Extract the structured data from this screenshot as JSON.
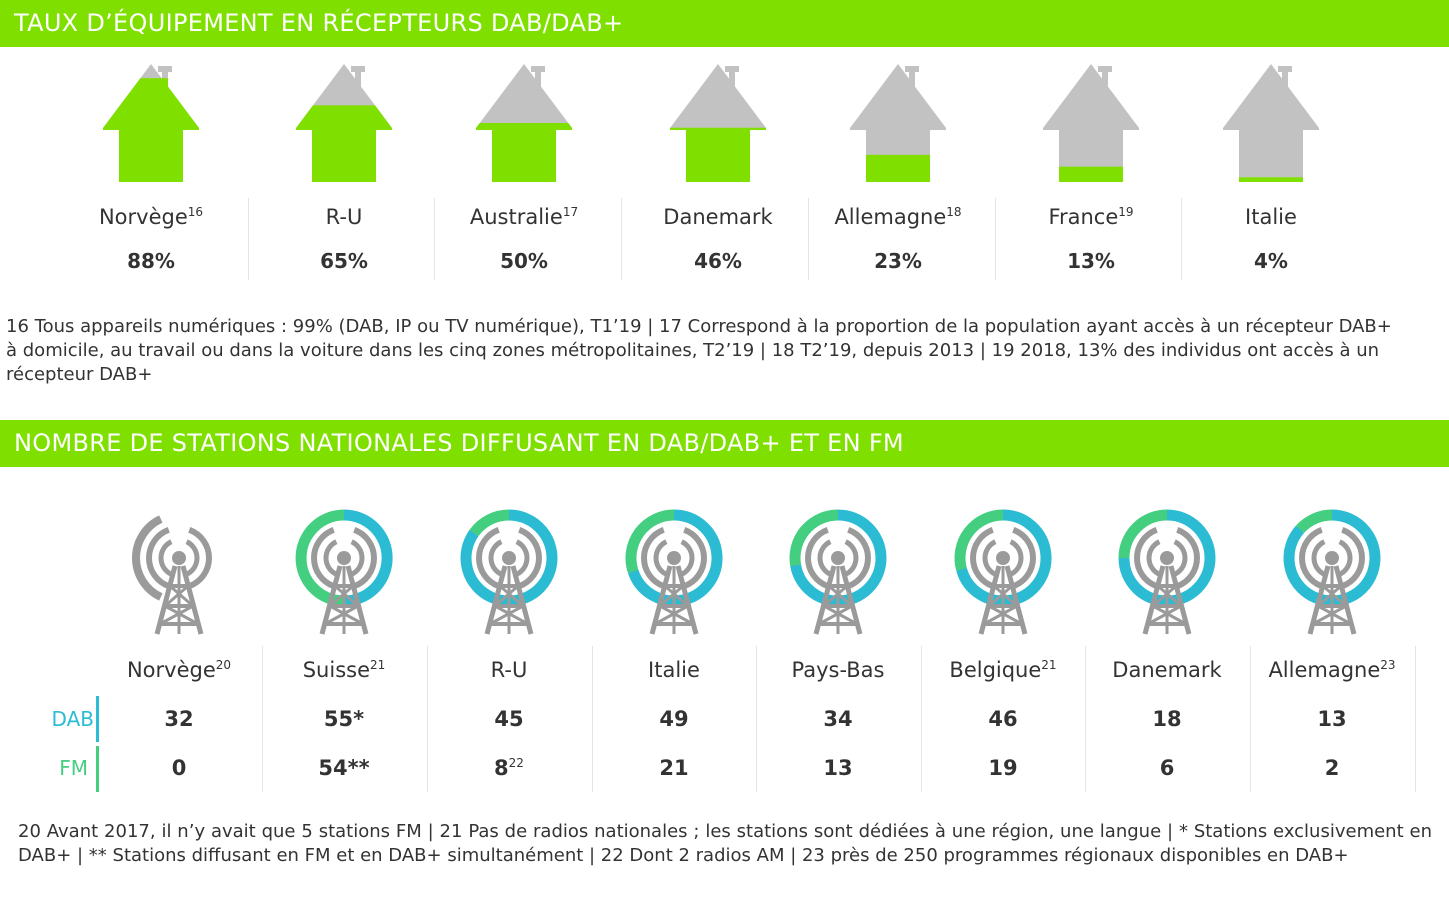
{
  "section1": {
    "title": "TAUX D’ÉQUIPEMENT EN RÉCEPTEURS DAB/DAB+",
    "footnote": "16 Tous appareils numériques : 99% (DAB, IP ou TV numérique), T1’19 | 17 Correspond à la proportion de la population ayant accès à un récepteur DAB+ à domicile, au travail ou dans la voiture dans les cinq zones métropolitaines, T2’19 | 18 T2’19, depuis 2013 | 19 2018, 13% des individus ont accès à un récepteur DAB+"
  },
  "section2": {
    "title": "NOMBRE DE STATIONS NATIONALES DIFFUSANT EN DAB/DAB+ ET EN FM",
    "dab_label": "DAB",
    "fm_label": "FM",
    "footnote": "20 Avant 2017, il n’y avait que 5 stations FM | 21 Pas de radios nationales ; les stations sont dédiées à une région, une langue | * Stations exclusivement en DAB+ | ** Stations diffusant en FM et en DAB+ simultanément | 22 Dont 2 radios AM | 23 près de 250 programmes régionaux disponibles en DAB+"
  },
  "colors": {
    "banner": "#7fe000",
    "house_fill": "#7fe000",
    "house_empty": "#c2c2c2",
    "dab": "#2bbcd4",
    "fm": "#44cf80",
    "tower": "#9a9a9a"
  },
  "icons": {
    "house": "house-icon",
    "tower": "radio-tower-icon"
  },
  "chart_data": [
    {
      "type": "bar",
      "title": "TAUX D’ÉQUIPEMENT EN RÉCEPTEURS DAB/DAB+",
      "categories": [
        "Norvège",
        "R-U",
        "Australie",
        "Danemark",
        "Allemagne",
        "France",
        "Italie"
      ],
      "superscripts": [
        "16",
        "",
        "17",
        "",
        "18",
        "19",
        ""
      ],
      "values": [
        88,
        65,
        50,
        46,
        23,
        13,
        4
      ],
      "labels": [
        "88%",
        "65%",
        "50%",
        "46%",
        "23%",
        "13%",
        "4%"
      ],
      "unit": "%",
      "ylim": [
        0,
        100
      ]
    },
    {
      "type": "table",
      "title": "NOMBRE DE STATIONS NATIONALES DIFFUSANT EN DAB/DAB+ ET EN FM",
      "categories": [
        "Norvège",
        "Suisse",
        "R-U",
        "Italie",
        "Pays-Bas",
        "Belgique",
        "Danemark",
        "Allemagne"
      ],
      "superscripts": [
        "20",
        "21",
        "",
        "",
        "",
        "21",
        "",
        "23"
      ],
      "series": [
        {
          "name": "DAB",
          "values": [
            32,
            55,
            45,
            49,
            34,
            46,
            18,
            13
          ],
          "labels": [
            "32",
            "55*",
            "45",
            "49",
            "34",
            "46",
            "18",
            "13"
          ],
          "label_sups": [
            "",
            "",
            "",
            "",
            "",
            "",
            "",
            ""
          ]
        },
        {
          "name": "FM",
          "values": [
            0,
            54,
            8,
            21,
            13,
            19,
            6,
            2
          ],
          "labels": [
            "0",
            "54**",
            "8",
            "21",
            "13",
            "19",
            "6",
            "2"
          ],
          "label_sups": [
            "",
            "",
            "22",
            "",
            "",
            "",
            "",
            ""
          ]
        }
      ]
    }
  ]
}
